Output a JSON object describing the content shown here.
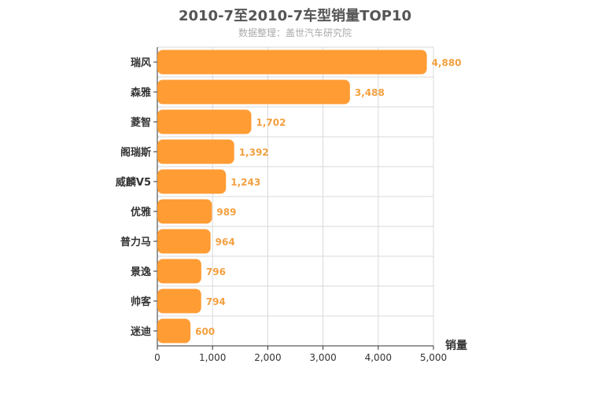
{
  "chart_data": {
    "type": "bar",
    "orientation": "horizontal",
    "title": "2010-7至2010-7车型销量TOP10",
    "subtitle": "数据整理：盖世汽车研究院",
    "categories": [
      "瑞风",
      "森雅",
      "菱智",
      "阁瑞斯",
      "威麟V5",
      "优雅",
      "普力马",
      "景逸",
      "帅客",
      "迷迪"
    ],
    "values": [
      4880,
      3488,
      1702,
      1392,
      1243,
      989,
      964,
      796,
      794,
      600
    ],
    "value_labels": [
      "4,880",
      "3,488",
      "1,702",
      "1,392",
      "1,243",
      "989",
      "964",
      "796",
      "794",
      "600"
    ],
    "xlabel": "销量",
    "ylabel": "",
    "xlim": [
      0,
      5000
    ],
    "xticks": [
      0,
      1000,
      2000,
      3000,
      4000,
      5000
    ],
    "xtick_labels": [
      "0",
      "1,000",
      "2,000",
      "3,000",
      "4,000",
      "5,000"
    ],
    "grid": true,
    "bar_color": "#FF9C34",
    "label_color": "#F4A040"
  }
}
